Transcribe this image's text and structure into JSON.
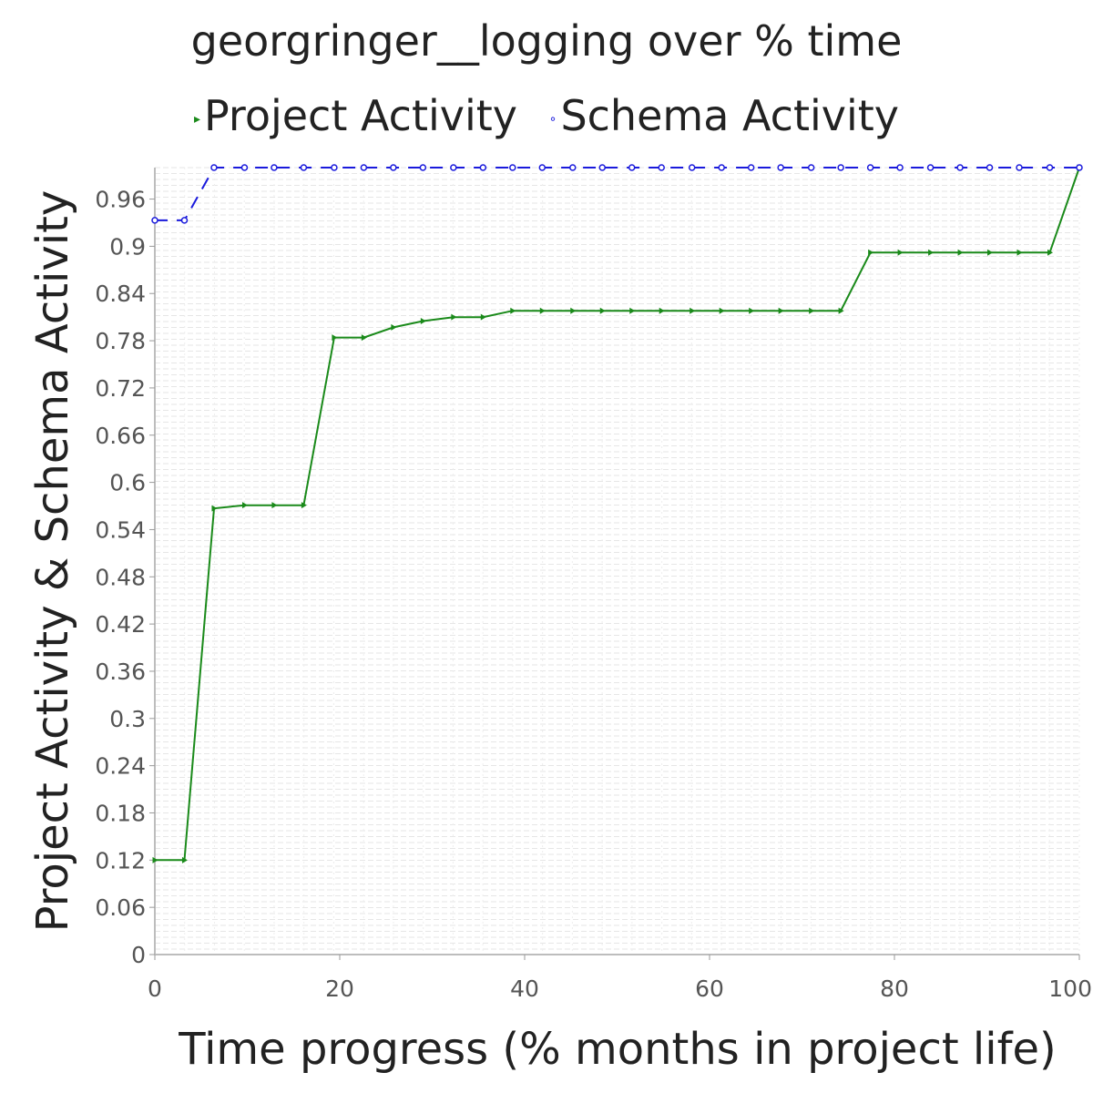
{
  "title": "georgringer__logging over % time",
  "legend": [
    {
      "name": "Project Activity",
      "color": "#1a8a1a",
      "marker": "▸"
    },
    {
      "name": "Schema Activity",
      "color": "#1a1adc",
      "marker": "∘"
    }
  ],
  "chart_data": {
    "type": "line",
    "title": "georgringer__logging over % time",
    "xlabel": "Time progress (% months in project life)",
    "ylabel": "Project Activity & Schema Activity",
    "xlim": [
      0,
      100
    ],
    "ylim": [
      0,
      1.0
    ],
    "x_ticks": [
      0,
      20,
      40,
      60,
      80,
      100
    ],
    "x_tick_labels": [
      "0",
      "20",
      "40",
      "60",
      "80",
      "100"
    ],
    "y_ticks": [
      0,
      0.06,
      0.12,
      0.18,
      0.24,
      0.3,
      0.36,
      0.42,
      0.48,
      0.54,
      0.6,
      0.66,
      0.72,
      0.78,
      0.84,
      0.9,
      0.96
    ],
    "y_tick_labels": [
      "0",
      "0.06",
      "0.12",
      "0.18",
      "0.24",
      "0.3",
      "0.36",
      "0.42",
      "0.48",
      "0.54",
      "0.6",
      "0.66",
      "0.72",
      "0.78",
      "0.84",
      "0.9",
      "0.96"
    ],
    "grid": true,
    "legend_position": "top",
    "series": [
      {
        "name": "Project Activity",
        "color": "#1a8a1a",
        "dash": "solid",
        "marker": "triangle-right",
        "x": [
          0,
          3.2,
          6.4,
          9.7,
          12.9,
          16.1,
          19.4,
          22.6,
          25.8,
          29.0,
          32.3,
          35.5,
          38.7,
          41.9,
          45.2,
          48.4,
          51.6,
          54.8,
          58.1,
          61.3,
          64.5,
          67.7,
          71.0,
          74.2,
          77.4,
          80.6,
          83.9,
          87.1,
          90.3,
          93.5,
          96.8,
          100
        ],
        "y": [
          0.12,
          0.12,
          0.567,
          0.571,
          0.571,
          0.571,
          0.784,
          0.784,
          0.797,
          0.805,
          0.81,
          0.81,
          0.818,
          0.818,
          0.818,
          0.818,
          0.818,
          0.818,
          0.818,
          0.818,
          0.818,
          0.818,
          0.818,
          0.818,
          0.892,
          0.892,
          0.892,
          0.892,
          0.892,
          0.892,
          0.892,
          1.0
        ]
      },
      {
        "name": "Schema Activity",
        "color": "#1a1adc",
        "dash": "dashed",
        "marker": "circle",
        "x": [
          0,
          3.2,
          6.4,
          9.7,
          12.9,
          16.1,
          19.4,
          22.6,
          25.8,
          29.0,
          32.3,
          35.5,
          38.7,
          41.9,
          45.2,
          48.4,
          51.6,
          54.8,
          58.1,
          61.3,
          64.5,
          67.7,
          71.0,
          74.2,
          77.4,
          80.6,
          83.9,
          87.1,
          90.3,
          93.5,
          96.8,
          100
        ],
        "y": [
          0.933,
          0.933,
          1.0,
          1.0,
          1.0,
          1.0,
          1.0,
          1.0,
          1.0,
          1.0,
          1.0,
          1.0,
          1.0,
          1.0,
          1.0,
          1.0,
          1.0,
          1.0,
          1.0,
          1.0,
          1.0,
          1.0,
          1.0,
          1.0,
          1.0,
          1.0,
          1.0,
          1.0,
          1.0,
          1.0,
          1.0,
          1.0
        ]
      }
    ]
  }
}
